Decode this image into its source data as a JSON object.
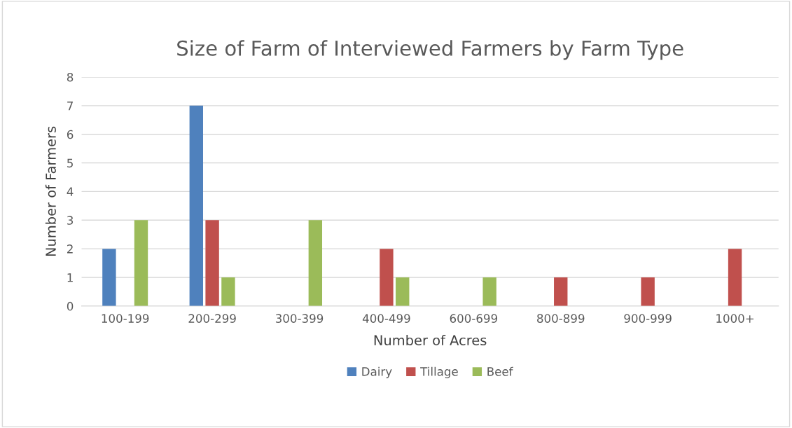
{
  "chart_data": {
    "type": "bar",
    "title": "Size of Farm of Interviewed Farmers by Farm Type",
    "xlabel": "Number of Acres",
    "ylabel": "Number of Farmers",
    "categories": [
      "100-199",
      "200-299",
      "300-399",
      "400-499",
      "600-699",
      "800-899",
      "900-999",
      "1000+"
    ],
    "series": [
      {
        "name": "Dairy",
        "color": "#4f81bd",
        "values": [
          2,
          7,
          null,
          null,
          null,
          null,
          null,
          null
        ]
      },
      {
        "name": "Tillage",
        "color": "#c0504d",
        "values": [
          null,
          3,
          null,
          2,
          null,
          1,
          1,
          2
        ]
      },
      {
        "name": "Beef",
        "color": "#9bbb59",
        "values": [
          3,
          1,
          3,
          1,
          1,
          null,
          null,
          null
        ]
      }
    ],
    "ylim": [
      0,
      8
    ],
    "yticks": [
      0,
      1,
      2,
      3,
      4,
      5,
      6,
      7,
      8
    ],
    "grid": "y",
    "legend": "bottom"
  }
}
